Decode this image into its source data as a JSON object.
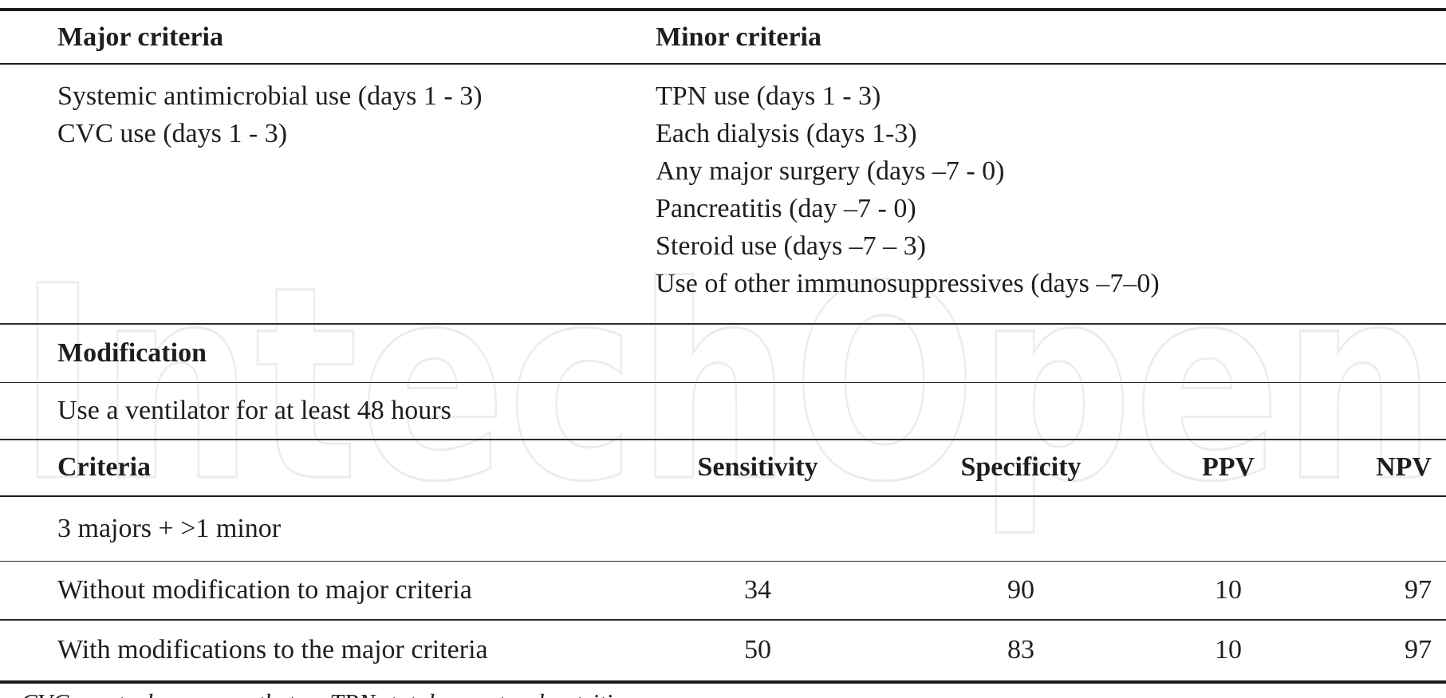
{
  "table": {
    "criteria_section": {
      "major_header": "Major criteria",
      "minor_header": "Minor criteria",
      "major_items": [
        "Systemic antimicrobial use (days 1 - 3)",
        "CVC use (days 1 - 3)"
      ],
      "minor_items": [
        "TPN use (days 1 - 3)",
        "Each dialysis (days 1-3)",
        "Any major surgery (days –7 - 0)",
        "Pancreatitis (day –7 - 0)",
        "Steroid use (days –7 – 3)",
        "Use of other immunosuppressives (days –7–0)"
      ]
    },
    "modification_section": {
      "header": "Modification",
      "item": "Use a ventilator for at least 48 hours"
    },
    "results_section": {
      "columns": [
        "Criteria",
        "Sensitivity",
        "Specificity",
        "PPV",
        "NPV"
      ],
      "group_label": "3 majors + >1 minor",
      "rows": [
        {
          "criteria": "Without modification to major criteria",
          "sensitivity": 34,
          "specificity": 90,
          "ppv": 10,
          "npv": 97
        },
        {
          "criteria": "With modifications to the major criteria",
          "sensitivity": 50,
          "specificity": 83,
          "ppv": 10,
          "npv": 97
        }
      ]
    },
    "footnote": "CVC: central venous catheter; TPN: total parenteral nutrition",
    "watermark": "IntechOpen"
  },
  "colors": {
    "text": "#1e1e1e",
    "rule": "#1b1b1b",
    "watermark_outline": "#ececec",
    "background": "#ffffff"
  }
}
